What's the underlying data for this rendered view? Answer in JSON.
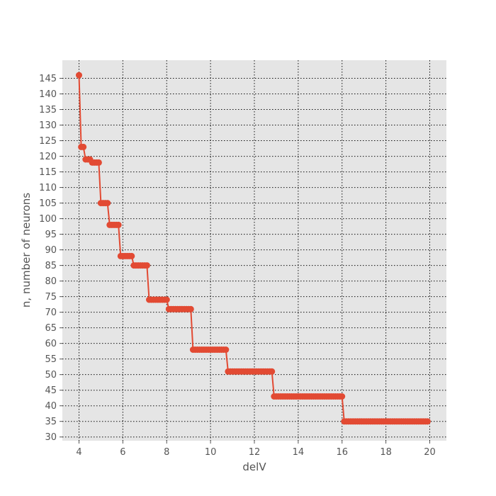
{
  "chart_data": {
    "type": "line",
    "title": "",
    "xlabel": "delV",
    "ylabel": "n, number of neurons",
    "xlim": [
      3.24,
      20.76
    ],
    "ylim": [
      28.8,
      150.8
    ],
    "x_ticks": [
      4,
      6,
      8,
      10,
      12,
      14,
      16,
      18,
      20
    ],
    "y_ticks": [
      30,
      35,
      40,
      45,
      50,
      55,
      60,
      65,
      70,
      75,
      80,
      85,
      90,
      95,
      100,
      105,
      110,
      115,
      120,
      125,
      130,
      135,
      140,
      145
    ],
    "grid": true,
    "grid_style": "dotted",
    "background": "#e5e5e5",
    "series": [
      {
        "color": "#e24a33",
        "marker": "circle",
        "points": [
          [
            4.0,
            146
          ],
          [
            4.1,
            123
          ],
          [
            4.2,
            123
          ],
          [
            4.3,
            119
          ],
          [
            4.4,
            119
          ],
          [
            4.5,
            119
          ],
          [
            4.6,
            118
          ],
          [
            4.7,
            118
          ],
          [
            4.8,
            118
          ],
          [
            4.9,
            118
          ],
          [
            5.0,
            105
          ],
          [
            5.1,
            105
          ],
          [
            5.2,
            105
          ],
          [
            5.3,
            105
          ],
          [
            5.4,
            98
          ],
          [
            5.5,
            98
          ],
          [
            5.6,
            98
          ],
          [
            5.7,
            98
          ],
          [
            5.8,
            98
          ],
          [
            5.9,
            88
          ],
          [
            6.0,
            88
          ],
          [
            6.1,
            88
          ],
          [
            6.2,
            88
          ],
          [
            6.3,
            88
          ],
          [
            6.4,
            88
          ],
          [
            6.5,
            85
          ],
          [
            6.6,
            85
          ],
          [
            6.7,
            85
          ],
          [
            6.8,
            85
          ],
          [
            6.9,
            85
          ],
          [
            7.0,
            85
          ],
          [
            7.1,
            85
          ],
          [
            7.2,
            74
          ],
          [
            7.3,
            74
          ],
          [
            7.4,
            74
          ],
          [
            7.5,
            74
          ],
          [
            7.6,
            74
          ],
          [
            7.7,
            74
          ],
          [
            7.8,
            74
          ],
          [
            7.9,
            74
          ],
          [
            8.0,
            74
          ],
          [
            8.1,
            71
          ],
          [
            8.2,
            71
          ],
          [
            8.3,
            71
          ],
          [
            8.4,
            71
          ],
          [
            8.5,
            71
          ],
          [
            8.6,
            71
          ],
          [
            8.7,
            71
          ],
          [
            8.8,
            71
          ],
          [
            8.9,
            71
          ],
          [
            9.0,
            71
          ],
          [
            9.1,
            71
          ],
          [
            9.2,
            58
          ],
          [
            9.3,
            58
          ],
          [
            9.4,
            58
          ],
          [
            9.5,
            58
          ],
          [
            9.6,
            58
          ],
          [
            9.7,
            58
          ],
          [
            9.8,
            58
          ],
          [
            9.9,
            58
          ],
          [
            10.0,
            58
          ],
          [
            10.1,
            58
          ],
          [
            10.2,
            58
          ],
          [
            10.3,
            58
          ],
          [
            10.4,
            58
          ],
          [
            10.5,
            58
          ],
          [
            10.6,
            58
          ],
          [
            10.7,
            58
          ],
          [
            10.8,
            51
          ],
          [
            10.9,
            51
          ],
          [
            11.0,
            51
          ],
          [
            11.1,
            51
          ],
          [
            11.2,
            51
          ],
          [
            11.3,
            51
          ],
          [
            11.4,
            51
          ],
          [
            11.5,
            51
          ],
          [
            11.6,
            51
          ],
          [
            11.7,
            51
          ],
          [
            11.8,
            51
          ],
          [
            11.9,
            51
          ],
          [
            12.0,
            51
          ],
          [
            12.1,
            51
          ],
          [
            12.2,
            51
          ],
          [
            12.3,
            51
          ],
          [
            12.4,
            51
          ],
          [
            12.5,
            51
          ],
          [
            12.6,
            51
          ],
          [
            12.7,
            51
          ],
          [
            12.8,
            51
          ],
          [
            12.9,
            43
          ],
          [
            13.0,
            43
          ],
          [
            13.1,
            43
          ],
          [
            13.2,
            43
          ],
          [
            13.3,
            43
          ],
          [
            13.4,
            43
          ],
          [
            13.5,
            43
          ],
          [
            13.6,
            43
          ],
          [
            13.7,
            43
          ],
          [
            13.8,
            43
          ],
          [
            13.9,
            43
          ],
          [
            14.0,
            43
          ],
          [
            14.1,
            43
          ],
          [
            14.2,
            43
          ],
          [
            14.3,
            43
          ],
          [
            14.4,
            43
          ],
          [
            14.5,
            43
          ],
          [
            14.6,
            43
          ],
          [
            14.7,
            43
          ],
          [
            14.8,
            43
          ],
          [
            14.9,
            43
          ],
          [
            15.0,
            43
          ],
          [
            15.1,
            43
          ],
          [
            15.2,
            43
          ],
          [
            15.3,
            43
          ],
          [
            15.4,
            43
          ],
          [
            15.5,
            43
          ],
          [
            15.6,
            43
          ],
          [
            15.7,
            43
          ],
          [
            15.8,
            43
          ],
          [
            15.9,
            43
          ],
          [
            16.0,
            43
          ],
          [
            16.1,
            35
          ],
          [
            16.2,
            35
          ],
          [
            16.3,
            35
          ],
          [
            16.4,
            35
          ],
          [
            16.5,
            35
          ],
          [
            16.6,
            35
          ],
          [
            16.7,
            35
          ],
          [
            16.8,
            35
          ],
          [
            16.9,
            35
          ],
          [
            17.0,
            35
          ],
          [
            17.1,
            35
          ],
          [
            17.2,
            35
          ],
          [
            17.3,
            35
          ],
          [
            17.4,
            35
          ],
          [
            17.5,
            35
          ],
          [
            17.6,
            35
          ],
          [
            17.7,
            35
          ],
          [
            17.8,
            35
          ],
          [
            17.9,
            35
          ],
          [
            18.0,
            35
          ],
          [
            18.1,
            35
          ],
          [
            18.2,
            35
          ],
          [
            18.3,
            35
          ],
          [
            18.4,
            35
          ],
          [
            18.5,
            35
          ],
          [
            18.6,
            35
          ],
          [
            18.7,
            35
          ],
          [
            18.8,
            35
          ],
          [
            18.9,
            35
          ],
          [
            19.0,
            35
          ],
          [
            19.1,
            35
          ],
          [
            19.2,
            35
          ],
          [
            19.3,
            35
          ],
          [
            19.4,
            35
          ],
          [
            19.5,
            35
          ],
          [
            19.6,
            35
          ],
          [
            19.7,
            35
          ],
          [
            19.8,
            35
          ],
          [
            19.9,
            35
          ]
        ]
      }
    ]
  }
}
